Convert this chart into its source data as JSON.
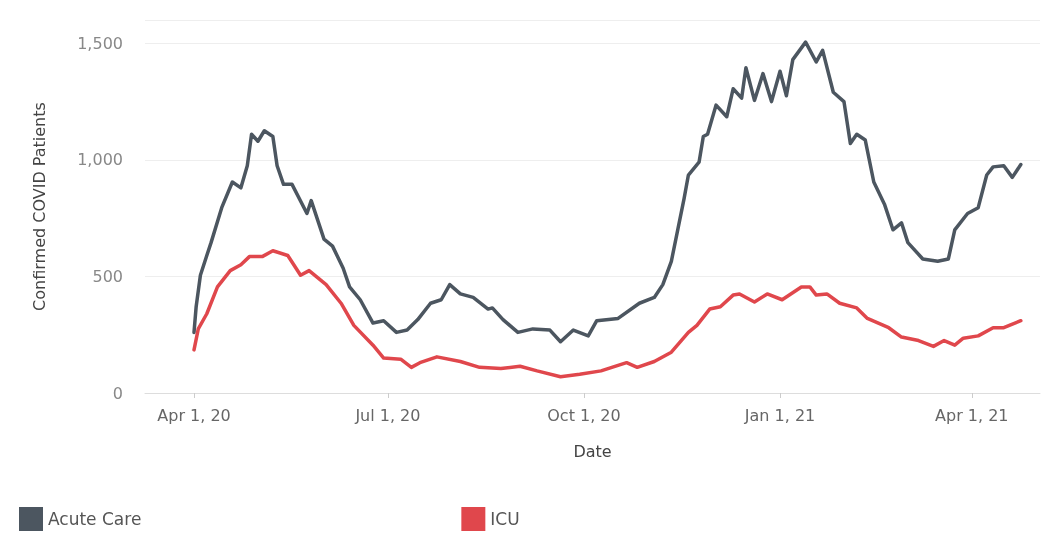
{
  "chart_data": {
    "type": "line",
    "xlabel": "Date",
    "ylabel": "Confirmed COVID Patients",
    "xlim": [
      "2020-03-09",
      "2021-05-03"
    ],
    "xticks": [
      {
        "value": "2020-04-01",
        "label": "Apr 1, 20"
      },
      {
        "value": "2020-07-01",
        "label": "Jul 1, 20"
      },
      {
        "value": "2020-10-01",
        "label": "Oct 1, 20"
      },
      {
        "value": "2021-01-01",
        "label": "Jan 1, 21"
      },
      {
        "value": "2021-04-01",
        "label": "Apr 1, 21"
      }
    ],
    "ylim": [
      0,
      1600
    ],
    "yticks": [
      0,
      {
        "value": 500,
        "label": "500"
      },
      {
        "value": 1000,
        "label": "1,000"
      },
      {
        "value": 1500,
        "label": "1,500"
      }
    ],
    "grid": "y",
    "legend": "bottom",
    "marker": "none",
    "line_style": "solid",
    "series": [
      {
        "name": "Acute Care",
        "color": "#4c5660",
        "x": [
          "2020-04-01",
          "2020-04-02",
          "2020-04-04",
          "2020-04-07",
          "2020-04-09",
          "2020-04-14",
          "2020-04-19",
          "2020-04-23",
          "2020-04-26",
          "2020-04-28",
          "2020-05-01",
          "2020-05-04",
          "2020-05-08",
          "2020-05-10",
          "2020-05-13",
          "2020-05-17",
          "2020-05-24",
          "2020-05-26",
          "2020-06-01",
          "2020-06-05",
          "2020-06-10",
          "2020-06-13",
          "2020-06-18",
          "2020-06-24",
          "2020-06-29",
          "2020-07-05",
          "2020-07-10",
          "2020-07-15",
          "2020-07-21",
          "2020-07-26",
          "2020-07-30",
          "2020-08-04",
          "2020-08-10",
          "2020-08-17",
          "2020-08-19",
          "2020-08-24",
          "2020-08-31",
          "2020-09-07",
          "2020-09-15",
          "2020-09-20",
          "2020-09-26",
          "2020-10-03",
          "2020-10-07",
          "2020-10-17",
          "2020-10-27",
          "2020-11-03",
          "2020-11-07",
          "2020-11-11",
          "2020-11-14",
          "2020-11-17",
          "2020-11-19",
          "2020-11-24",
          "2020-11-26",
          "2020-11-28",
          "2020-12-02",
          "2020-12-07",
          "2020-12-10",
          "2020-12-14",
          "2020-12-16",
          "2020-12-20",
          "2020-12-24",
          "2020-12-28",
          "2021-01-01",
          "2021-01-04",
          "2021-01-07",
          "2021-01-13",
          "2021-01-18",
          "2021-01-21",
          "2021-01-26",
          "2021-01-31",
          "2021-02-03",
          "2021-02-06",
          "2021-02-10",
          "2021-02-14",
          "2021-02-19",
          "2021-02-23",
          "2021-02-27",
          "2021-03-02",
          "2021-03-09",
          "2021-03-16",
          "2021-03-21",
          "2021-03-24",
          "2021-03-30",
          "2021-04-04",
          "2021-04-08",
          "2021-04-11",
          "2021-04-16",
          "2021-04-20",
          "2021-04-24"
        ],
        "values": [
          260,
          370,
          505,
          590,
          645,
          795,
          905,
          880,
          975,
          1110,
          1080,
          1125,
          1100,
          975,
          895,
          895,
          770,
          825,
          660,
          630,
          535,
          455,
          400,
          300,
          310,
          260,
          270,
          315,
          385,
          400,
          465,
          425,
          410,
          360,
          365,
          315,
          260,
          275,
          270,
          220,
          270,
          245,
          310,
          320,
          385,
          410,
          465,
          565,
          700,
          835,
          935,
          990,
          1100,
          1110,
          1235,
          1185,
          1305,
          1265,
          1395,
          1255,
          1370,
          1250,
          1380,
          1275,
          1430,
          1505,
          1420,
          1470,
          1290,
          1250,
          1070,
          1110,
          1085,
          905,
          810,
          700,
          730,
          645,
          575,
          565,
          575,
          700,
          770,
          795,
          935,
          970,
          975,
          925,
          980
        ]
      },
      {
        "name": "ICU",
        "color": "#e0474c",
        "x": [
          "2020-04-01",
          "2020-04-03",
          "2020-04-07",
          "2020-04-12",
          "2020-04-18",
          "2020-04-23",
          "2020-04-27",
          "2020-05-03",
          "2020-05-08",
          "2020-05-15",
          "2020-05-21",
          "2020-05-25",
          "2020-06-02",
          "2020-06-09",
          "2020-06-15",
          "2020-06-24",
          "2020-06-29",
          "2020-07-07",
          "2020-07-12",
          "2020-07-16",
          "2020-07-24",
          "2020-08-04",
          "2020-08-13",
          "2020-08-23",
          "2020-09-01",
          "2020-09-09",
          "2020-09-20",
          "2020-09-29",
          "2020-10-09",
          "2020-10-21",
          "2020-10-26",
          "2020-11-03",
          "2020-11-11",
          "2020-11-19",
          "2020-11-23",
          "2020-11-29",
          "2020-12-04",
          "2020-12-10",
          "2020-12-13",
          "2020-12-20",
          "2020-12-26",
          "2021-01-02",
          "2021-01-11",
          "2021-01-15",
          "2021-01-18",
          "2021-01-23",
          "2021-01-29",
          "2021-02-06",
          "2021-02-11",
          "2021-02-21",
          "2021-02-27",
          "2021-03-07",
          "2021-03-14",
          "2021-03-19",
          "2021-03-24",
          "2021-03-28",
          "2021-04-04",
          "2021-04-11",
          "2021-04-16",
          "2021-04-24"
        ],
        "values": [
          185,
          275,
          340,
          455,
          525,
          550,
          585,
          585,
          610,
          590,
          505,
          525,
          465,
          385,
          290,
          205,
          150,
          145,
          110,
          130,
          155,
          135,
          110,
          105,
          115,
          95,
          70,
          80,
          95,
          130,
          110,
          135,
          175,
          260,
          290,
          360,
          370,
          420,
          425,
          390,
          425,
          400,
          455,
          455,
          420,
          425,
          385,
          365,
          320,
          280,
          240,
          225,
          200,
          225,
          205,
          235,
          245,
          280,
          280,
          310
        ]
      }
    ]
  }
}
